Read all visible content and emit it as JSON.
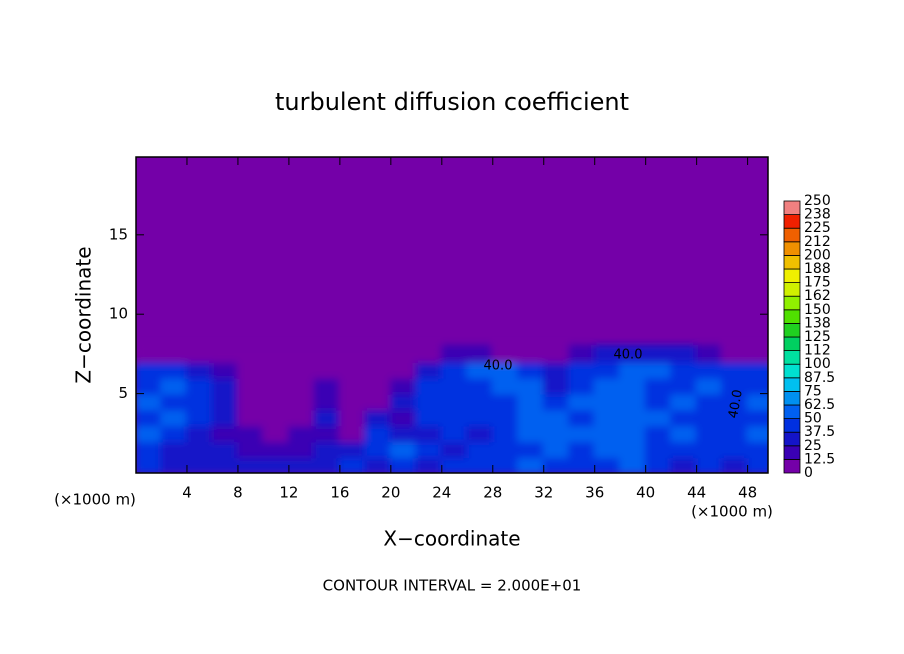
{
  "chart_data": {
    "type": "contour",
    "title": "turbulent diffusion coefficient",
    "xlabel": "X−coordinate",
    "ylabel": "Z−coordinate",
    "units": "(×1000 m)",
    "footer": "CONTOUR INTERVAL = 2.000E+01",
    "xlim": [
      0,
      49.6
    ],
    "ylim": [
      0,
      19.9
    ],
    "xticks": [
      4,
      8,
      12,
      16,
      20,
      24,
      28,
      32,
      36,
      40,
      44,
      48
    ],
    "yticks": [
      5,
      10,
      15
    ],
    "x": [
      1,
      3,
      5,
      7,
      9,
      11,
      13,
      15,
      17,
      19,
      21,
      23,
      25,
      27,
      29,
      31,
      33,
      35,
      37,
      39,
      41,
      43,
      45,
      47,
      49
    ],
    "z": [
      0.5,
      1.5,
      2.5,
      3.5,
      4.5,
      5.5,
      6.5,
      7.5
    ],
    "values": [
      [
        40,
        30,
        35,
        30,
        30,
        25,
        30,
        35,
        40,
        35,
        45,
        35,
        40,
        40,
        45,
        50,
        45,
        40,
        45,
        50,
        40,
        35,
        40,
        35,
        40
      ],
      [
        45,
        35,
        30,
        25,
        20,
        15,
        20,
        30,
        30,
        40,
        60,
        40,
        35,
        40,
        40,
        45,
        50,
        45,
        50,
        55,
        45,
        40,
        45,
        40,
        45
      ],
      [
        50,
        40,
        35,
        20,
        15,
        10,
        15,
        20,
        10,
        45,
        30,
        35,
        40,
        35,
        40,
        50,
        55,
        50,
        55,
        60,
        45,
        50,
        45,
        40,
        50
      ],
      [
        45,
        50,
        40,
        25,
        10,
        5,
        10,
        25,
        5,
        35,
        20,
        40,
        45,
        40,
        45,
        55,
        50,
        45,
        50,
        55,
        50,
        45,
        40,
        45,
        45
      ],
      [
        50,
        45,
        45,
        30,
        5,
        5,
        10,
        20,
        5,
        10,
        30,
        45,
        40,
        45,
        40,
        60,
        40,
        50,
        55,
        60,
        45,
        50,
        40,
        45,
        50
      ],
      [
        40,
        50,
        45,
        25,
        0,
        0,
        5,
        15,
        0,
        5,
        15,
        40,
        45,
        40,
        50,
        55,
        35,
        45,
        50,
        55,
        45,
        45,
        50,
        40,
        45
      ],
      [
        45,
        40,
        35,
        20,
        0,
        0,
        0,
        5,
        0,
        0,
        5,
        30,
        45,
        55,
        50,
        40,
        30,
        40,
        45,
        50,
        50,
        45,
        40,
        45,
        40
      ],
      [
        5,
        5,
        0,
        0,
        0,
        0,
        0,
        0,
        0,
        0,
        0,
        0,
        20,
        20,
        10,
        5,
        10,
        20,
        25,
        30,
        30,
        25,
        20,
        10,
        10
      ]
    ],
    "contour_labels": [
      "40.0",
      "40.0",
      "40.0"
    ],
    "colorbar": {
      "ticks": [
        0,
        12.5,
        25,
        37.5,
        50,
        62.5,
        75,
        87.5,
        100,
        {
          "value": 112.5,
          "label": "112"
        },
        125,
        {
          "value": 137.5,
          "label": "138"
        },
        150,
        {
          "value": 162.5,
          "label": "162"
        },
        175,
        {
          "value": 187.5,
          "label": "188"
        },
        200,
        {
          "value": 212.5,
          "label": "212"
        },
        225,
        {
          "value": 237.5,
          "label": "238"
        },
        250
      ],
      "colors": [
        "#7400a8",
        "#3a00b4",
        "#1414c8",
        "#0030e0",
        "#0060f0",
        "#0090f0",
        "#00c0f0",
        "#00e0d0",
        "#00e0a0",
        "#00d060",
        "#20d020",
        "#50e000",
        "#90f000",
        "#d0f000",
        "#f0f000",
        "#f0c000",
        "#f09000",
        "#f06000",
        "#f02000",
        "#f08080"
      ]
    }
  }
}
